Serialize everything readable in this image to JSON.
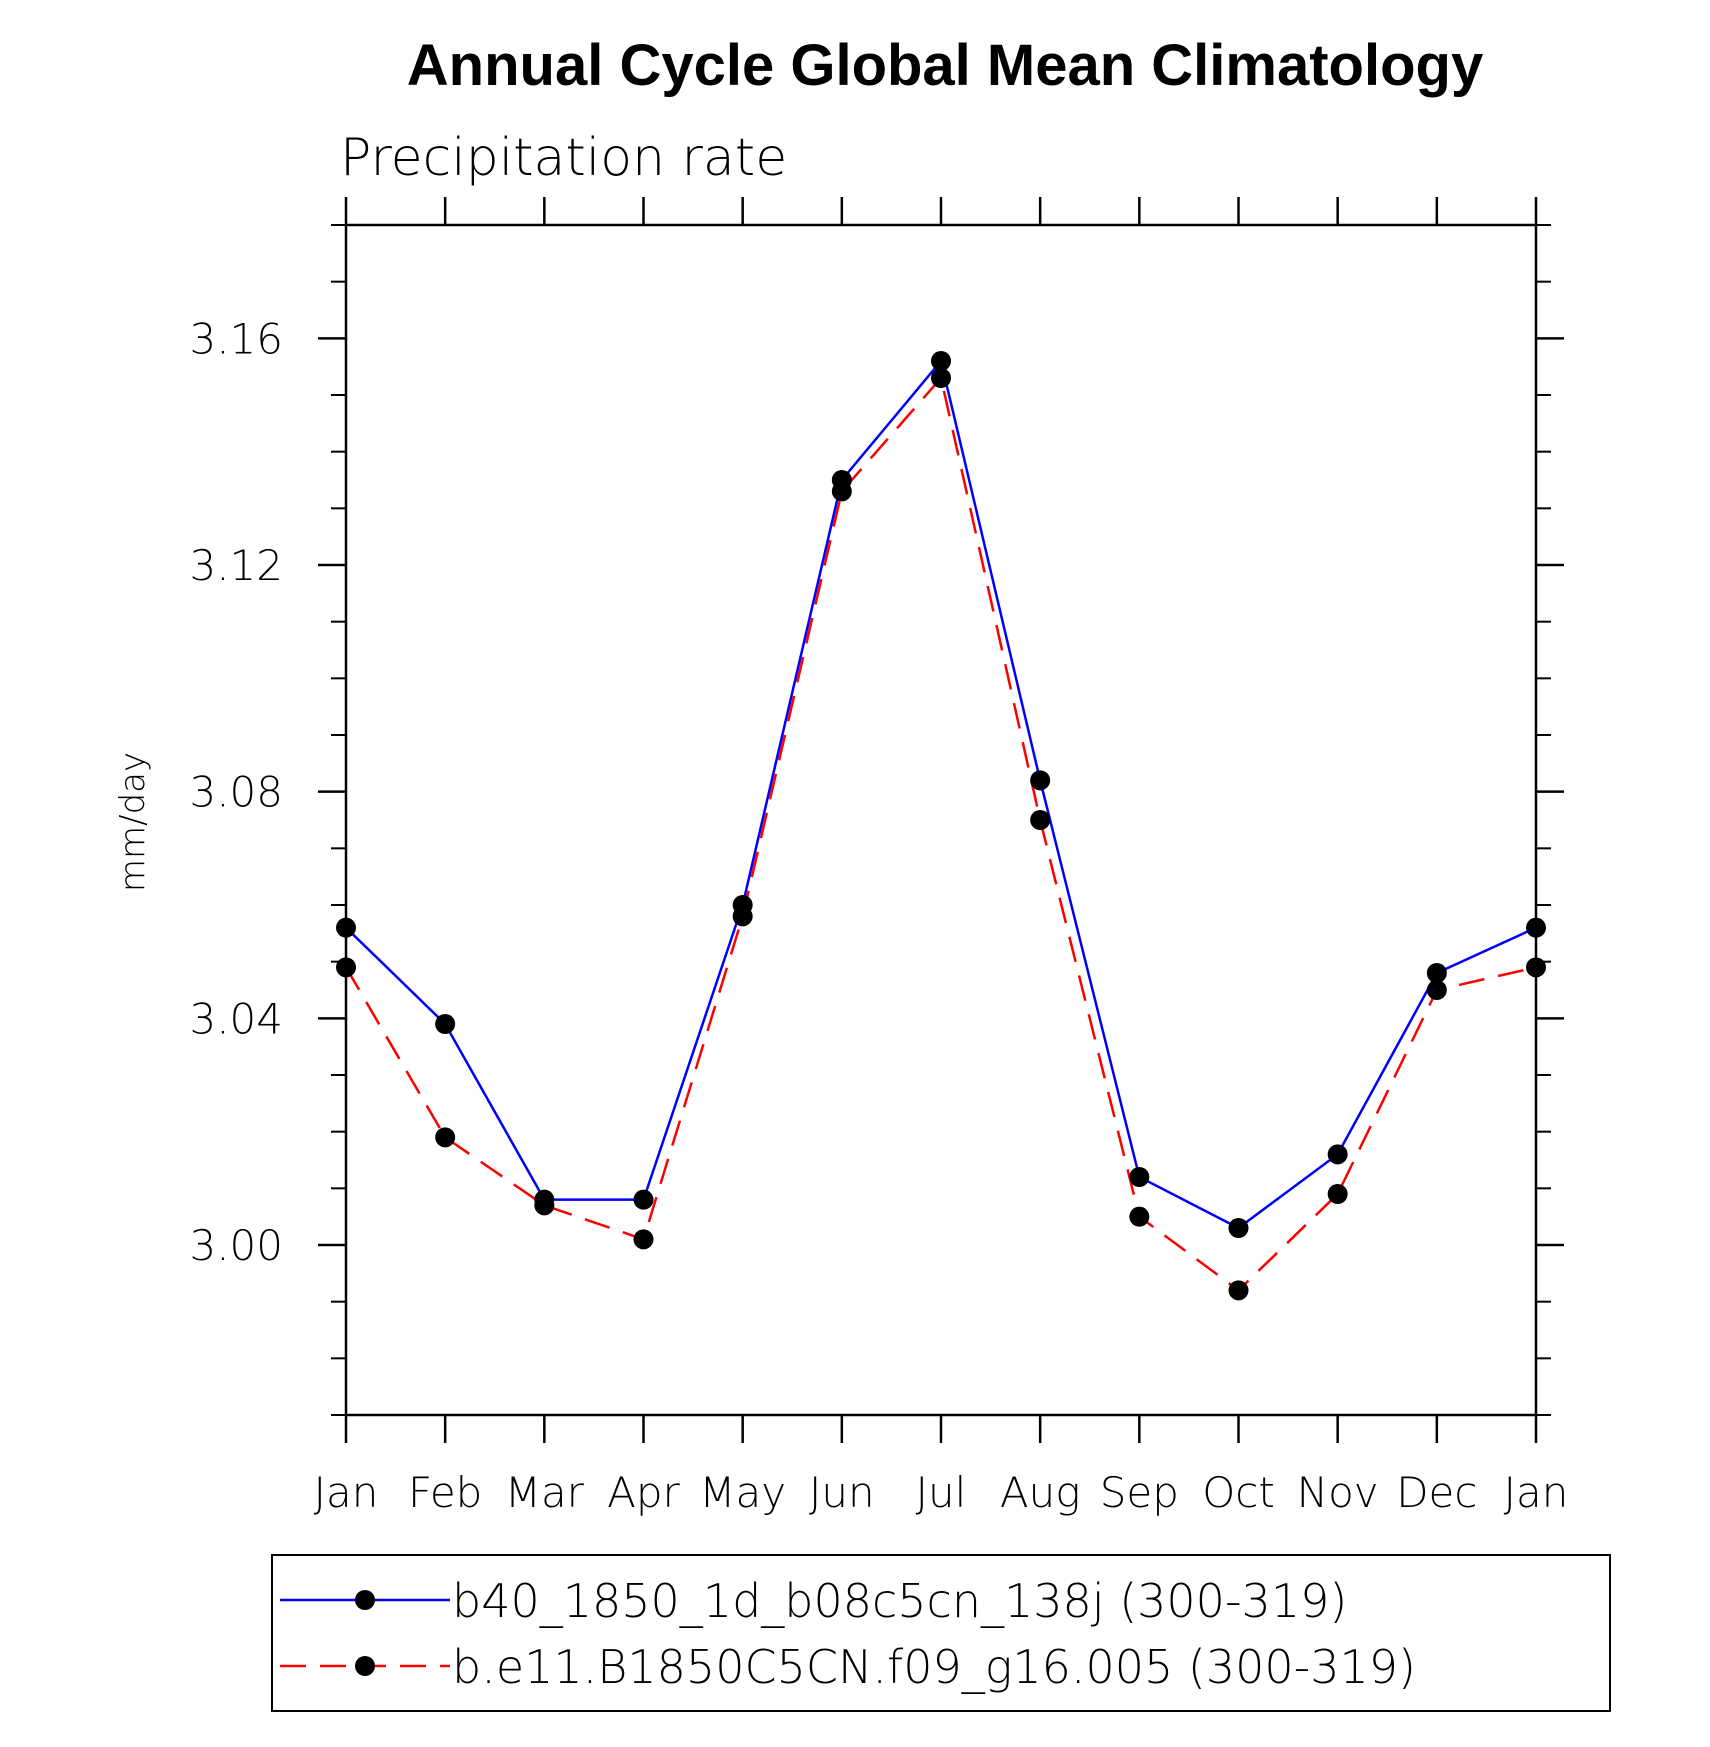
{
  "chart_data": {
    "type": "line",
    "title": "Annual Cycle Global Mean Climatology",
    "subtitle": "Precipitation rate",
    "xlabel": "",
    "ylabel": "mm/day",
    "categories": [
      "Jan",
      "Feb",
      "Mar",
      "Apr",
      "May",
      "Jun",
      "Jul",
      "Aug",
      "Sep",
      "Oct",
      "Nov",
      "Dec",
      "Jan"
    ],
    "ylim": [
      2.97,
      3.18
    ],
    "yticks": [
      3.0,
      3.04,
      3.08,
      3.12,
      3.16
    ],
    "ytick_labels": [
      "3.00",
      "3.04",
      "3.08",
      "3.12",
      "3.16"
    ],
    "grid": false,
    "legend_position": "bottom",
    "series": [
      {
        "name": "b40_1850_1d_b08c5cn_138j (300-319)",
        "color": "#0000ff",
        "dash": "solid",
        "marker": "filled-circle",
        "values": [
          3.056,
          3.039,
          3.008,
          3.008,
          3.06,
          3.135,
          3.156,
          3.082,
          3.012,
          3.003,
          3.016,
          3.048,
          3.056
        ]
      },
      {
        "name": "b.e11.B1850C5CN.f09_g16.005 (300-319)",
        "color": "#ff0000",
        "dash": "dashed",
        "marker": "filled-circle",
        "values": [
          3.049,
          3.019,
          3.007,
          3.001,
          3.058,
          3.133,
          3.153,
          3.075,
          3.005,
          2.992,
          3.009,
          3.045,
          3.049
        ]
      }
    ]
  }
}
